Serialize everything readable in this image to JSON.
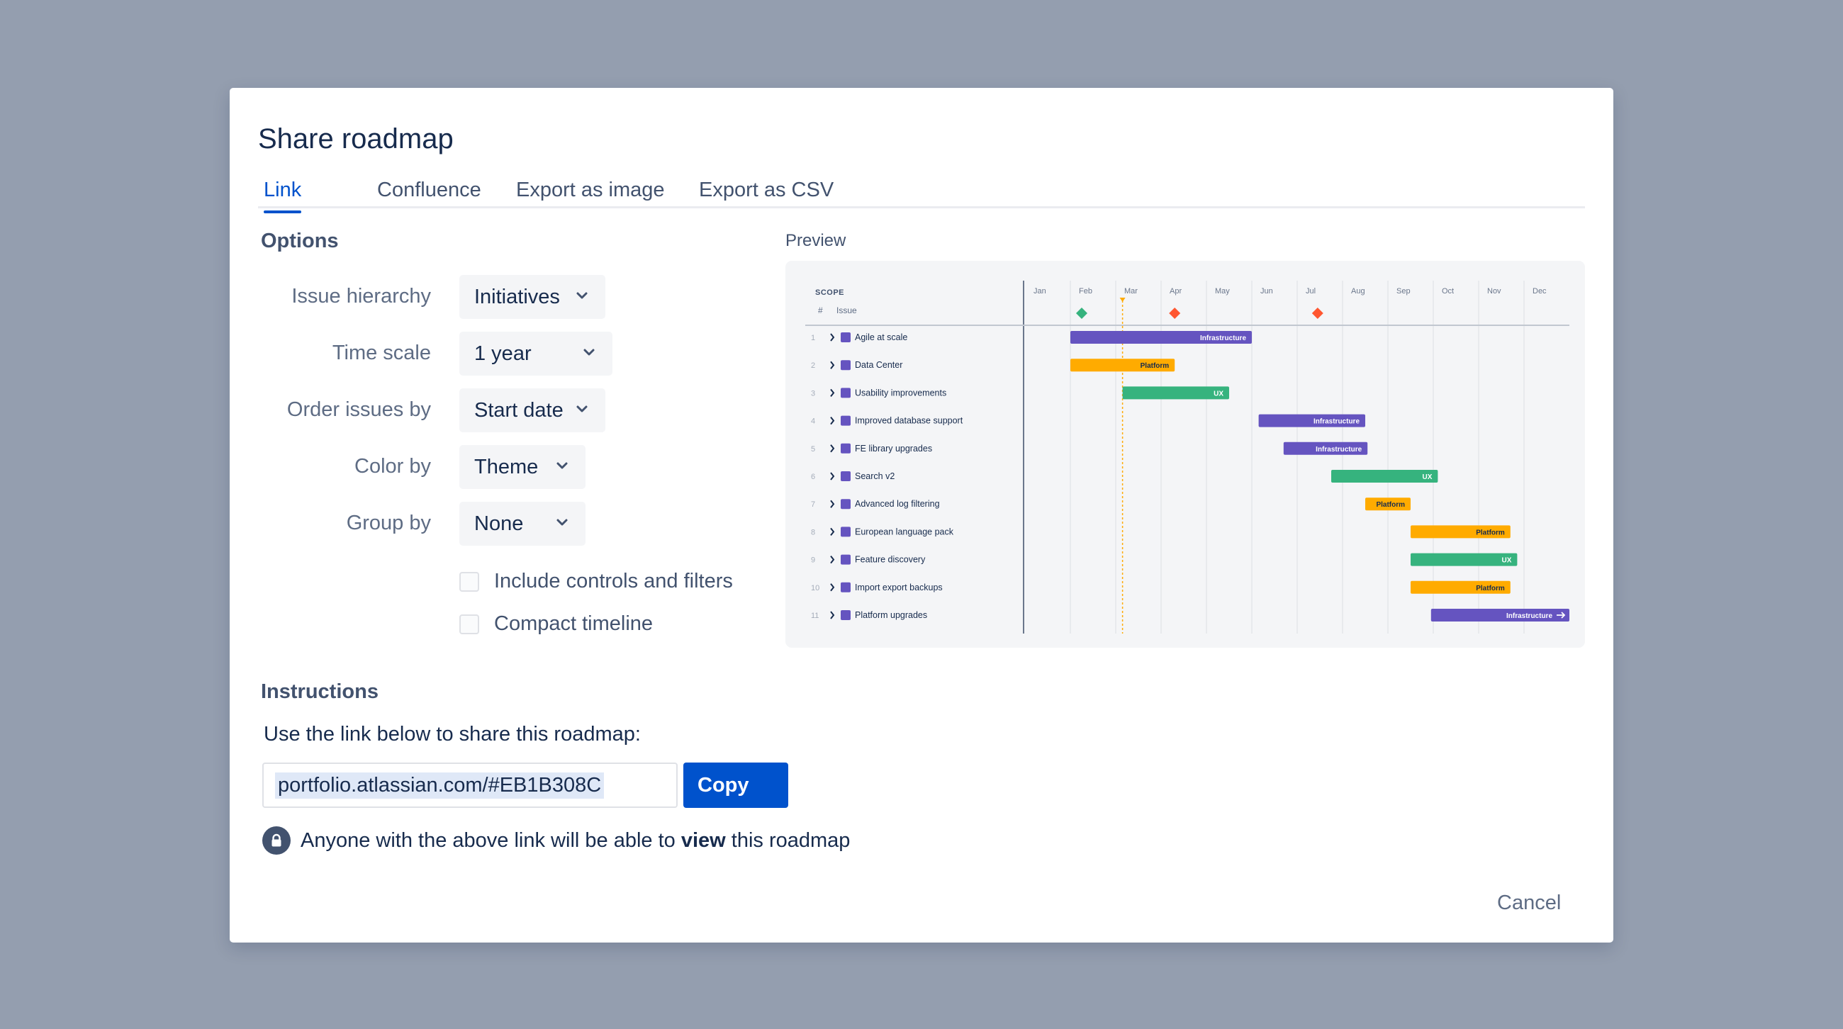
{
  "dialog": {
    "title": "Share roadmap",
    "tabs": [
      {
        "label": "Link",
        "active": true
      },
      {
        "label": "Confluence",
        "active": false
      },
      {
        "label": "Export as image",
        "active": false
      },
      {
        "label": "Export as CSV",
        "active": false
      }
    ],
    "cancel_label": "Cancel"
  },
  "options": {
    "heading": "Options",
    "fields": [
      {
        "label": "Issue hierarchy",
        "value": "Initiatives"
      },
      {
        "label": "Time scale",
        "value": "1 year"
      },
      {
        "label": "Order issues by",
        "value": "Start date"
      },
      {
        "label": "Color by",
        "value": "Theme"
      },
      {
        "label": "Group by",
        "value": "None"
      }
    ],
    "checkboxes": [
      {
        "label": "Include controls and filters",
        "checked": false
      },
      {
        "label": "Compact timeline",
        "checked": false
      }
    ]
  },
  "preview": {
    "label": "Preview",
    "scope_header": "SCOPE",
    "col_number": "#",
    "col_issue": "Issue",
    "months": [
      "Jan",
      "Feb",
      "Mar",
      "Apr",
      "May",
      "Jun",
      "Jul",
      "Aug",
      "Sep",
      "Oct",
      "Nov",
      "Dec"
    ],
    "milestones": [
      {
        "month": 1.25,
        "color": "#36b37e"
      },
      {
        "month": 3.3,
        "color": "#ff5630"
      },
      {
        "month": 6.45,
        "color": "#ff5630"
      }
    ],
    "today_month": 2.15,
    "rows": [
      {
        "num": "1",
        "name": "Agile at scale",
        "theme": "Infrastructure",
        "start": 1.0,
        "end": 5.0
      },
      {
        "num": "2",
        "name": "Data Center",
        "theme": "Platform",
        "start": 1.0,
        "end": 3.3
      },
      {
        "num": "3",
        "name": "Usability improvements",
        "theme": "UX",
        "start": 2.15,
        "end": 4.5
      },
      {
        "num": "4",
        "name": "Improved database support",
        "theme": "Infrastructure",
        "start": 5.15,
        "end": 7.5
      },
      {
        "num": "5",
        "name": "FE library upgrades",
        "theme": "Infrastructure",
        "start": 5.7,
        "end": 7.55
      },
      {
        "num": "6",
        "name": "Search v2",
        "theme": "UX",
        "start": 6.75,
        "end": 9.1
      },
      {
        "num": "7",
        "name": "Advanced log filtering",
        "theme": "Platform",
        "start": 7.5,
        "end": 8.5
      },
      {
        "num": "8",
        "name": "European language pack",
        "theme": "Platform",
        "start": 8.5,
        "end": 10.7
      },
      {
        "num": "9",
        "name": "Feature discovery",
        "theme": "UX",
        "start": 8.5,
        "end": 10.85
      },
      {
        "num": "10",
        "name": "Import export backups",
        "theme": "Platform",
        "start": 8.5,
        "end": 10.7
      },
      {
        "num": "11",
        "name": "Platform upgrades",
        "theme": "Infrastructure",
        "start": 8.95,
        "end": 12.0,
        "continues": true
      }
    ],
    "theme_colors": {
      "Infrastructure": "#6554c0",
      "Platform": "#ffab00",
      "UX": "#36b37e"
    }
  },
  "instructions": {
    "heading": "Instructions",
    "text": "Use the link below to share this roadmap:",
    "link_value": "portfolio.atlassian.com/#EB1B308C",
    "copy_label": "Copy",
    "notice_prefix": "Anyone with the above link will be able to ",
    "notice_bold": "view",
    "notice_suffix": " this roadmap",
    "lock_icon": "lock-icon"
  }
}
